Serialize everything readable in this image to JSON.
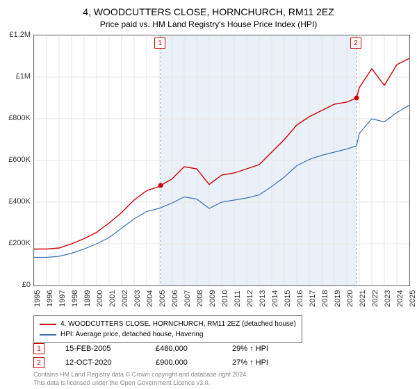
{
  "title": "4, WOODCUTTERS CLOSE, HORNCHURCH, RM11 2EZ",
  "subtitle": "Price paid vs. HM Land Registry's House Price Index (HPI)",
  "chart": {
    "type": "line",
    "background_color": "#ffffff",
    "border_color": "#666666",
    "grid_color": "#e5e5e5",
    "xlim": [
      1995,
      2025
    ],
    "ylim": [
      0,
      1200000
    ],
    "y_ticks": [
      0,
      200000,
      400000,
      600000,
      800000,
      1000000,
      1200000
    ],
    "y_tick_labels": [
      "£0",
      "£200K",
      "£400K",
      "£600K",
      "£800K",
      "£1M",
      "£1.2M"
    ],
    "x_ticks": [
      1995,
      1996,
      1997,
      1998,
      1999,
      2000,
      2001,
      2002,
      2003,
      2004,
      2005,
      2006,
      2007,
      2008,
      2009,
      2010,
      2011,
      2012,
      2013,
      2014,
      2015,
      2016,
      2017,
      2018,
      2019,
      2020,
      2021,
      2022,
      2023,
      2024,
      2025
    ],
    "tick_fontsize": 11,
    "shaded_region": {
      "x_start": 2005.12,
      "x_end": 2020.78,
      "fill": "#eaf0f7"
    },
    "series": [
      {
        "name": "property",
        "label": "4, WOODCUTTERS CLOSE, HORNCHURCH, RM11 2EZ (detached house)",
        "color": "#cc0000",
        "line_width": 1.4,
        "x": [
          1995,
          1996,
          1997,
          1998,
          1999,
          2000,
          2001,
          2002,
          2003,
          2004,
          2005,
          2005.12,
          2006,
          2007,
          2008,
          2009,
          2010,
          2011,
          2012,
          2013,
          2014,
          2015,
          2016,
          2017,
          2018,
          2019,
          2020,
          2020.78,
          2021,
          2022,
          2023,
          2024,
          2025
        ],
        "y": [
          175000,
          175000,
          180000,
          200000,
          225000,
          255000,
          300000,
          350000,
          410000,
          455000,
          475000,
          480000,
          510000,
          570000,
          560000,
          485000,
          530000,
          540000,
          560000,
          580000,
          640000,
          700000,
          770000,
          810000,
          840000,
          870000,
          880000,
          900000,
          950000,
          1040000,
          960000,
          1060000,
          1090000
        ]
      },
      {
        "name": "hpi",
        "label": "HPI: Average price, detached house, Havering",
        "color": "#3b6fb3",
        "line_width": 1.2,
        "x": [
          1995,
          1996,
          1997,
          1998,
          1999,
          2000,
          2001,
          2002,
          2003,
          2004,
          2005,
          2006,
          2007,
          2008,
          2009,
          2010,
          2011,
          2012,
          2013,
          2014,
          2015,
          2016,
          2017,
          2018,
          2019,
          2020,
          2020.78,
          2021,
          2022,
          2023,
          2024,
          2025
        ],
        "y": [
          135000,
          135000,
          140000,
          155000,
          175000,
          200000,
          230000,
          275000,
          320000,
          355000,
          370000,
          395000,
          425000,
          415000,
          370000,
          400000,
          410000,
          420000,
          435000,
          475000,
          520000,
          575000,
          605000,
          625000,
          640000,
          655000,
          670000,
          730000,
          800000,
          785000,
          830000,
          865000
        ]
      }
    ],
    "sale_markers": [
      {
        "index": "1",
        "x": 2005.12,
        "y": 480000,
        "color": "#cc0000"
      },
      {
        "index": "2",
        "x": 2020.78,
        "y": 900000,
        "color": "#cc0000"
      }
    ],
    "marker_dot_radius": 3.5
  },
  "legend": {
    "border_color": "#666666",
    "fontsize": 10
  },
  "sales": [
    {
      "marker_index": "1",
      "marker_color": "#cc0000",
      "date": "15-FEB-2005",
      "price": "£480,000",
      "rel_pct": "29%",
      "rel_dir": "↑",
      "rel_label": "HPI"
    },
    {
      "marker_index": "2",
      "marker_color": "#cc0000",
      "date": "12-OCT-2020",
      "price": "£900,000",
      "rel_pct": "27%",
      "rel_dir": "↑",
      "rel_label": "HPI"
    }
  ],
  "footer_line1": "Contains HM Land Registry data © Crown copyright and database right 2024.",
  "footer_line2": "This data is licensed under the Open Government Licence v3.0."
}
